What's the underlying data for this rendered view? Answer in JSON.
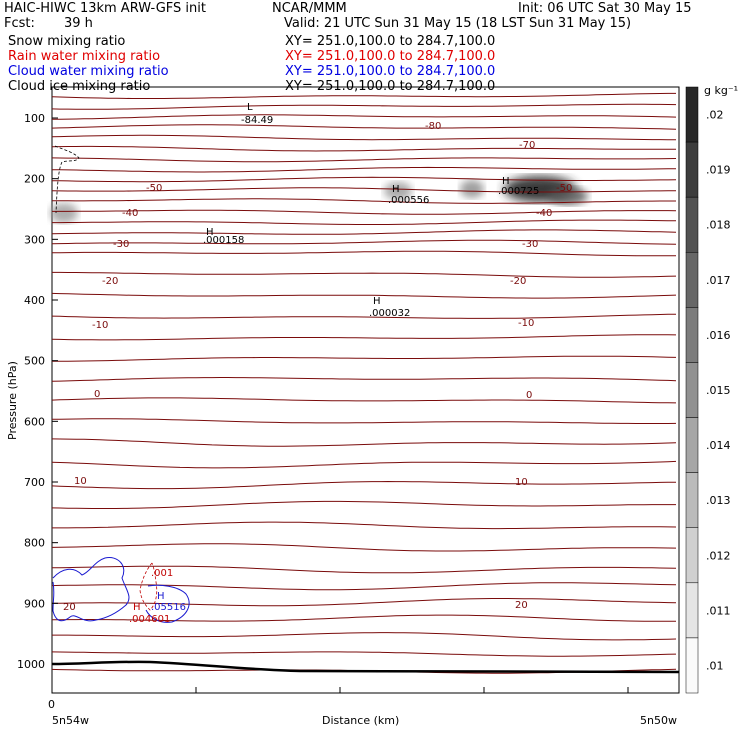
{
  "header": {
    "title_left": "HAIC-HIWC 13km ARW-GFS init",
    "org": "NCAR/MMM",
    "init": "Init: 06 UTC Sat 30 May 15",
    "fcst_label": "Fcst:",
    "fcst_value": "39 h",
    "valid": "Valid: 21 UTC Sun 31 May 15 (18 LST Sun 31 May 15)",
    "fields": [
      {
        "name": "Snow mixing ratio",
        "xy": "XY= 251.0,100.0 to 284.7,100.0",
        "color": "#000000"
      },
      {
        "name": "Rain water mixing ratio",
        "xy": "XY= 251.0,100.0 to 284.7,100.0",
        "color": "#e00000"
      },
      {
        "name": "Cloud water mixing ratio",
        "xy": "XY= 251.0,100.0 to 284.7,100.0",
        "color": "#0000e0"
      },
      {
        "name": "Cloud ice mixing ratio",
        "xy": "XY= 251.0,100.0 to 284.7,100.0",
        "color": "#000000"
      }
    ]
  },
  "chart_data": {
    "type": "contour_cross_section",
    "ylabel": "Pressure (hPa)",
    "xlabel": "Distance (km)",
    "x_start_label": "5n54w",
    "x_end_label": "5n50w",
    "x_ticks": [
      "0"
    ],
    "y_ticks": [
      100,
      200,
      300,
      400,
      500,
      600,
      700,
      800,
      900,
      1000
    ],
    "ylim": [
      1050,
      60
    ],
    "colorbar": {
      "unit": "g kg⁻¹",
      "ticks": [
        ".02",
        ".019",
        ".018",
        ".017",
        ".016",
        ".015",
        ".014",
        ".013",
        ".012",
        ".011",
        ".01"
      ]
    },
    "temperature_labels": [
      "-84.49",
      "-80",
      "-70",
      "-50",
      "-40",
      "-30",
      "-20",
      "-10",
      "0",
      "10",
      "20"
    ],
    "maxima": [
      {
        "letter": "L",
        "value": "-84.49"
      },
      {
        "letter": "H",
        "value": ".000158"
      },
      {
        "letter": "H",
        "value": ".000032"
      },
      {
        "letter": "H",
        "value": ".000556"
      },
      {
        "letter": "H",
        "value": ".000725"
      },
      {
        "letter": "H",
        "value": ".05516"
      },
      {
        "letter": "H",
        "value": ".004601"
      }
    ],
    "other_labels": [
      ".001",
      "20"
    ],
    "colors": {
      "isotherm": "#7a0b0b",
      "cloud_water": "#1a1ad0",
      "rain": "#c00000",
      "surface": "#000000"
    }
  }
}
